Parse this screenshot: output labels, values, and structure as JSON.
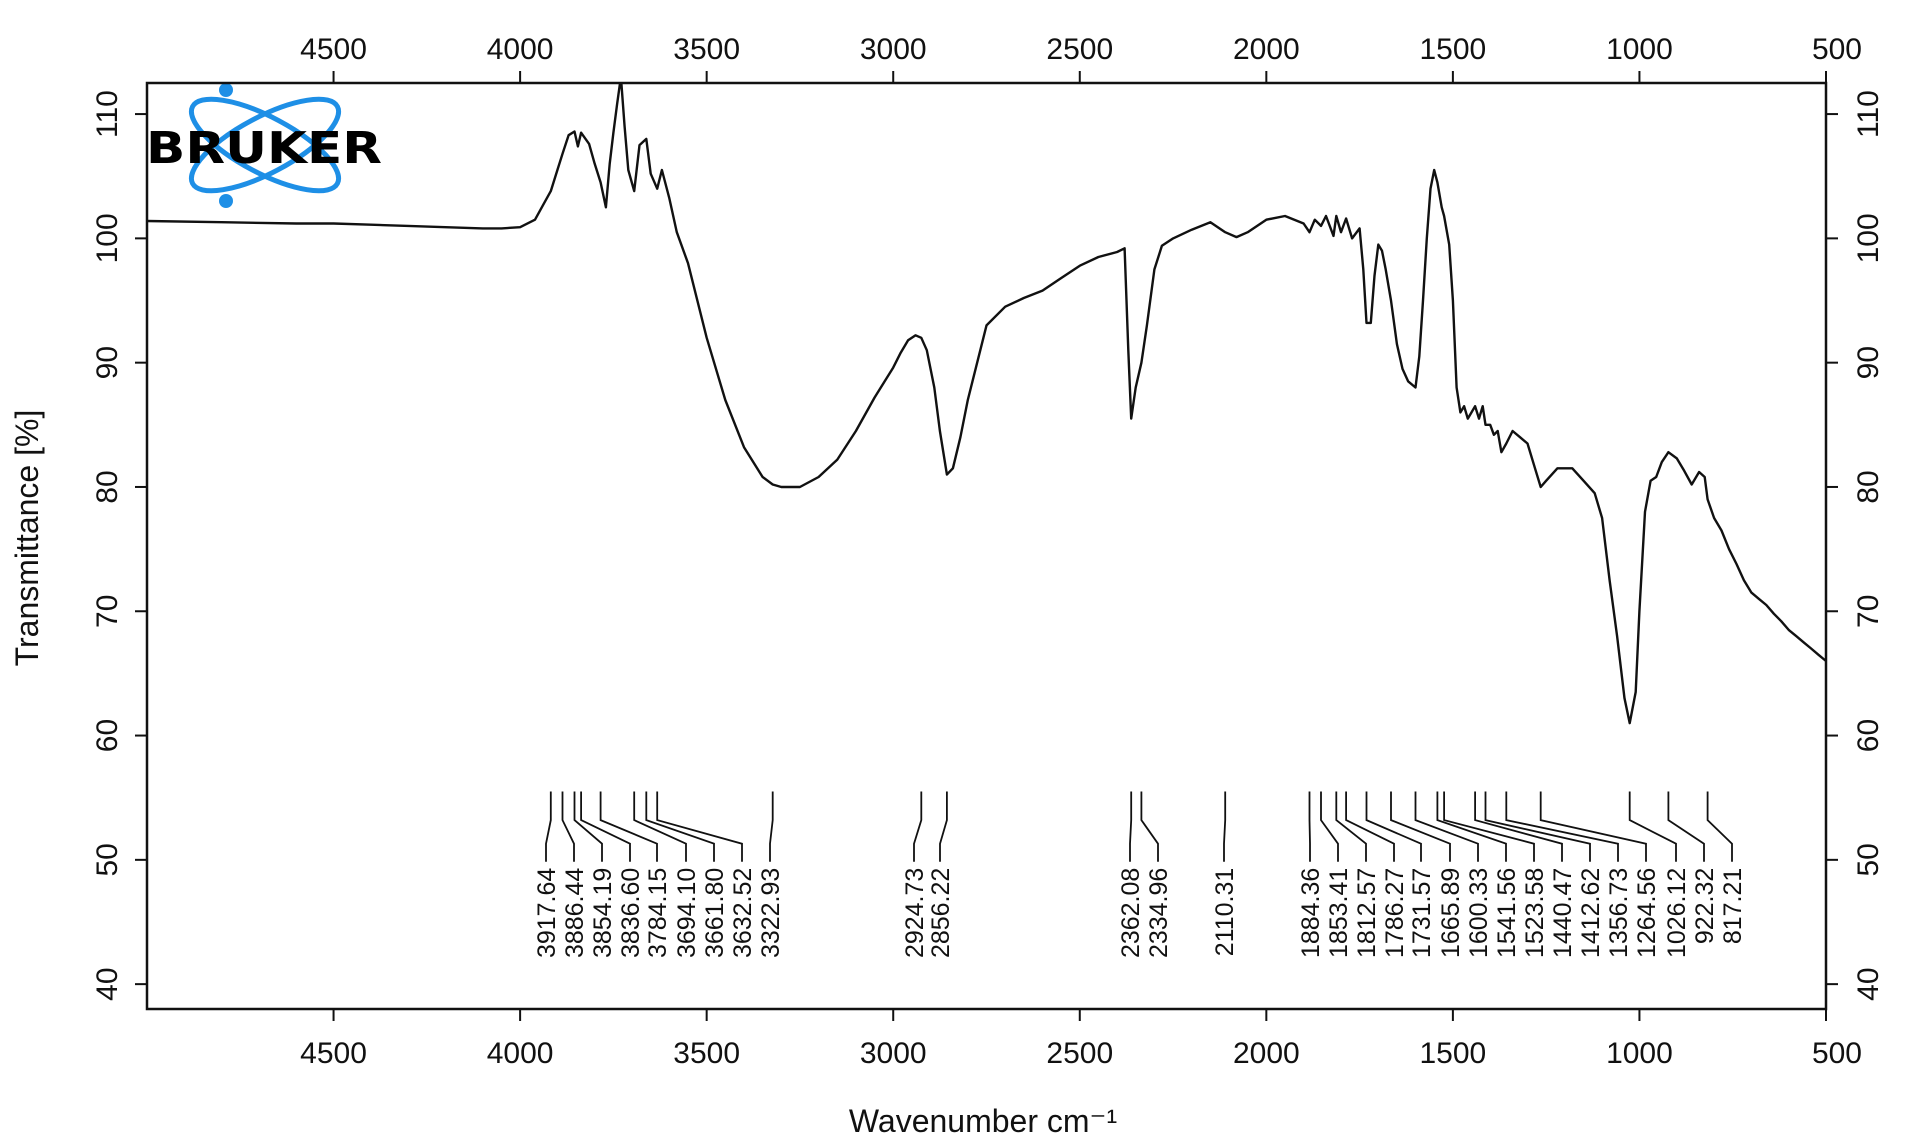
{
  "chart_data": {
    "type": "line",
    "title": "",
    "xlabel": "Wavenumber cm⁻¹",
    "ylabel": "Transmittance [%]",
    "xlim": [
      5000,
      500
    ],
    "ylim": [
      38,
      112.5
    ],
    "x_reversed": true,
    "x_ticks": [
      4500,
      4000,
      3500,
      3000,
      2500,
      2000,
      1500,
      1000,
      500
    ],
    "y_ticks": [
      40,
      50,
      60,
      70,
      80,
      90,
      100,
      110
    ],
    "x_tick_labels": [
      "4500",
      "4000",
      "3500",
      "3000",
      "2500",
      "2000",
      "1500",
      "1000",
      "500"
    ],
    "y_tick_labels": [
      "40",
      "50",
      "60",
      "70",
      "80",
      "90",
      "100",
      "110"
    ],
    "grid": false,
    "line_color": "#111111",
    "series": [
      {
        "x": [
          5000,
          4800,
          4600,
          4500,
          4400,
          4300,
          4200,
          4100,
          4050,
          4000,
          3960,
          3940,
          3917.64,
          3900,
          3886.44,
          3870,
          3854.19,
          3845,
          3836.6,
          3815,
          3800,
          3784.15,
          3770,
          3760,
          3750,
          3740,
          3730,
          3720,
          3710,
          3694.1,
          3680,
          3661.8,
          3650,
          3632.52,
          3620,
          3600,
          3580,
          3550,
          3500,
          3450,
          3400,
          3350,
          3322.93,
          3300,
          3250,
          3200,
          3150,
          3100,
          3050,
          3000,
          2980,
          2960,
          2940,
          2924.73,
          2910,
          2890,
          2875,
          2856.22,
          2840,
          2820,
          2800,
          2750,
          2700,
          2650,
          2600,
          2550,
          2500,
          2450,
          2400,
          2380,
          2370,
          2362.08,
          2350,
          2334.96,
          2320,
          2300,
          2280,
          2250,
          2200,
          2150,
          2110.31,
          2080,
          2050,
          2000,
          1950,
          1900,
          1884.36,
          1870,
          1853.41,
          1840,
          1820,
          1812.57,
          1800,
          1786.27,
          1770,
          1750,
          1740,
          1731.57,
          1720,
          1710,
          1700,
          1690,
          1680,
          1665.89,
          1650,
          1635,
          1620,
          1600.33,
          1590,
          1580,
          1570,
          1560,
          1550,
          1541.56,
          1530,
          1523.58,
          1510,
          1500,
          1490,
          1480,
          1470,
          1460,
          1450,
          1440.47,
          1430,
          1420,
          1412.62,
          1400,
          1390,
          1380,
          1370,
          1356.73,
          1340,
          1320,
          1300,
          1280,
          1264.56,
          1250,
          1220,
          1200,
          1180,
          1150,
          1120,
          1100,
          1080,
          1060,
          1040,
          1026.12,
          1010,
          1000,
          985,
          970,
          955,
          940,
          922.32,
          900,
          880,
          860,
          840,
          825,
          817.21,
          800,
          780,
          760,
          740,
          720,
          700,
          680,
          660,
          640,
          620,
          600,
          580,
          560,
          540,
          520,
          500
        ],
        "y": [
          101.4,
          101.3,
          101.2,
          101.2,
          101.1,
          101.0,
          100.9,
          100.8,
          100.8,
          100.9,
          101.5,
          102.6,
          103.8,
          105.5,
          106.8,
          108.3,
          108.6,
          107.4,
          108.5,
          107.6,
          106.0,
          104.5,
          102.5,
          106.0,
          108.5,
          110.8,
          113.0,
          109.0,
          105.5,
          103.8,
          107.5,
          108.0,
          105.2,
          104.0,
          105.5,
          103.2,
          100.5,
          98.0,
          92.0,
          87.0,
          83.2,
          80.8,
          80.2,
          80.0,
          80.0,
          80.8,
          82.2,
          84.5,
          87.2,
          89.6,
          90.8,
          91.8,
          92.2,
          92.0,
          91.0,
          88.0,
          84.5,
          81.0,
          81.5,
          84.0,
          87.0,
          93.0,
          94.5,
          95.2,
          95.8,
          96.8,
          97.8,
          98.5,
          98.9,
          99.2,
          91.0,
          85.5,
          88.0,
          90.0,
          93.0,
          97.5,
          99.4,
          100.0,
          100.7,
          101.3,
          100.5,
          100.1,
          100.5,
          101.5,
          101.8,
          101.2,
          100.5,
          101.5,
          101.0,
          101.8,
          100.2,
          101.8,
          100.5,
          101.6,
          100.0,
          100.8,
          97.5,
          93.2,
          93.2,
          97.0,
          99.5,
          99.0,
          97.5,
          95.0,
          91.5,
          89.5,
          88.5,
          88.0,
          90.5,
          95.0,
          100.0,
          104.0,
          105.5,
          104.5,
          102.5,
          101.8,
          99.5,
          95.0,
          88.0,
          86.0,
          86.5,
          85.5,
          86.0,
          86.5,
          85.5,
          86.5,
          85.0,
          85.0,
          84.2,
          84.5,
          82.8,
          83.5,
          84.5,
          84.0,
          83.5,
          81.5,
          80.0,
          80.5,
          81.5,
          81.5,
          81.5,
          80.5,
          79.5,
          77.5,
          72.5,
          68.0,
          63.0,
          61.0,
          63.5,
          70.0,
          78.0,
          80.5,
          80.8,
          82.0,
          82.8,
          82.3,
          81.3,
          80.2,
          81.2,
          80.8,
          79.0,
          77.5,
          76.5,
          75.0,
          73.8,
          72.5,
          71.5,
          71.0,
          70.5,
          69.8,
          69.2,
          68.5,
          68.0,
          67.5,
          67.0,
          66.5,
          66.0
        ]
      }
    ],
    "peak_labels": [
      "3917.64",
      "3886.44",
      "3854.19",
      "3836.60",
      "3784.15",
      "3694.10",
      "3661.80",
      "3632.52",
      "3322.93",
      "2924.73",
      "2856.22",
      "2362.08",
      "2334.96",
      "2110.31",
      "1884.36",
      "1853.41",
      "1812.57",
      "1786.27",
      "1731.57",
      "1665.89",
      "1600.33",
      "1541.56",
      "1523.58",
      "1440.47",
      "1412.62",
      "1356.73",
      "1264.56",
      "1026.12",
      "922.32",
      "817.21"
    ],
    "peak_positions": [
      3917.64,
      3886.44,
      3854.19,
      3836.6,
      3784.15,
      3694.1,
      3661.8,
      3632.52,
      3322.93,
      2924.73,
      2856.22,
      2362.08,
      2334.96,
      2110.31,
      1884.36,
      1853.41,
      1812.57,
      1786.27,
      1731.57,
      1665.89,
      1600.33,
      1541.56,
      1523.58,
      1440.47,
      1412.62,
      1356.73,
      1264.56,
      1026.12,
      922.32,
      817.21
    ]
  },
  "logo": {
    "text": "BRUKER",
    "color": "#1e8fe6"
  }
}
